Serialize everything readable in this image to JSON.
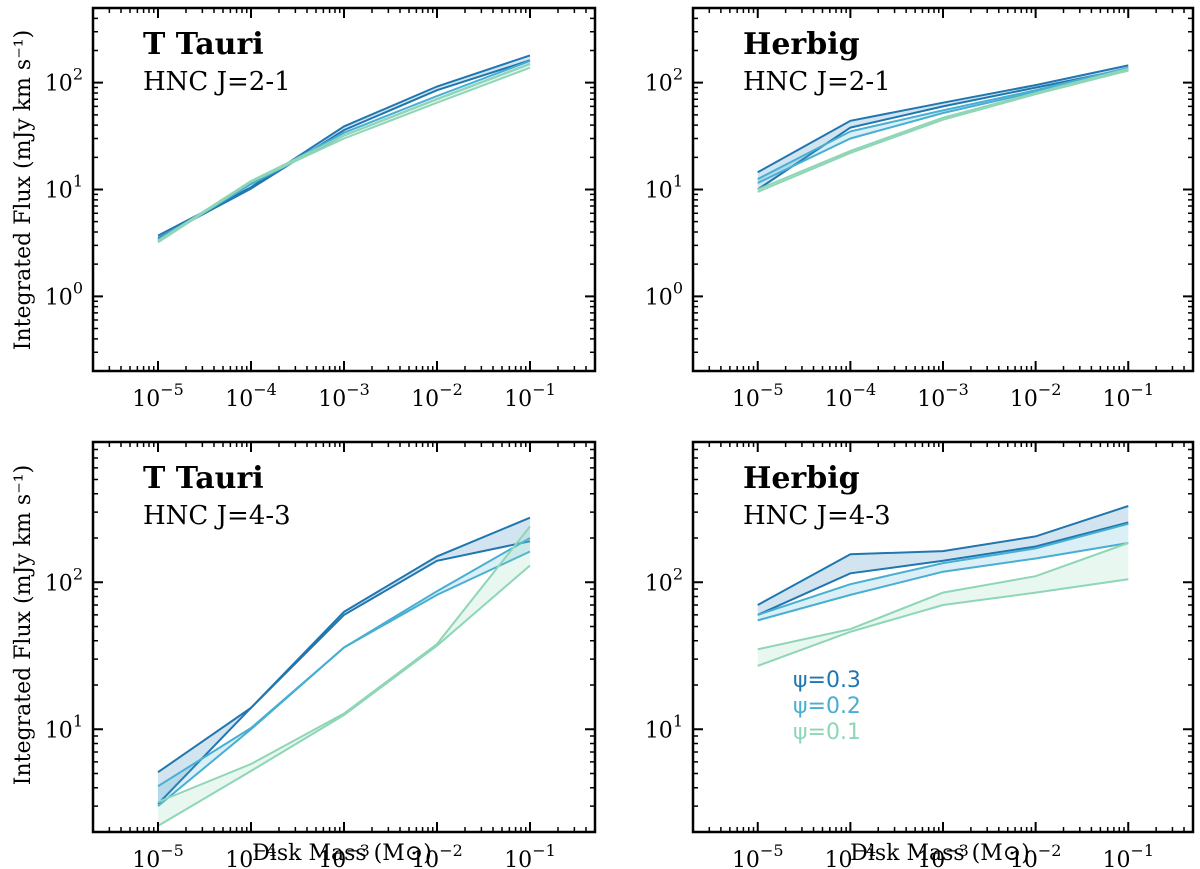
{
  "figure": {
    "ylabel": "Integrated Flux (mJy km s⁻¹)",
    "xlabel": "Disk Mass (M⊙)"
  },
  "colors": {
    "psi_0.3": "#2077b0",
    "psi_0.2": "#48aed2",
    "psi_0.1": "#8ed6b6"
  },
  "legend": [
    {
      "label": "ψ=0.3",
      "color": "#2077b0"
    },
    {
      "label": "ψ=0.2",
      "color": "#48aed2"
    },
    {
      "label": "ψ=0.1",
      "color": "#8ed6b6"
    }
  ],
  "chart_data": [
    {
      "type": "line",
      "title": "T Tauri",
      "subtitle": "HNC J=2-1",
      "xscale": "log",
      "yscale": "log",
      "xlim": [
        2e-06,
        0.5
      ],
      "ylim": [
        0.2,
        500
      ],
      "xticks": [
        1e-05,
        0.0001,
        0.001,
        0.01,
        0.1
      ],
      "xtick_labels": [
        {
          "base": "10",
          "exp": "−5"
        },
        {
          "base": "10",
          "exp": "−4"
        },
        {
          "base": "10",
          "exp": "−3"
        },
        {
          "base": "10",
          "exp": "−2"
        },
        {
          "base": "10",
          "exp": "−1"
        }
      ],
      "yticks": [
        1,
        10,
        100
      ],
      "ytick_labels": [
        {
          "base": "10",
          "exp": "0"
        },
        {
          "base": "10",
          "exp": "1"
        },
        {
          "base": "10",
          "exp": "2"
        }
      ],
      "show_xlabel": false,
      "show_ylabel": true,
      "show_legend": false,
      "x": [
        1e-05,
        0.0001,
        0.001,
        0.01,
        0.1
      ],
      "series": [
        {
          "name": "ψ=0.3",
          "color": "#2077b0",
          "upper": [
            3.7,
            10.5,
            39,
            92,
            180
          ],
          "lower": [
            3.5,
            10.2,
            36,
            85,
            162
          ]
        },
        {
          "name": "ψ=0.2",
          "color": "#48aed2",
          "upper": [
            3.4,
            11.5,
            34,
            75,
            160
          ],
          "lower": [
            3.3,
            11.2,
            32,
            70,
            150
          ]
        },
        {
          "name": "ψ=0.1",
          "color": "#8ed6b6",
          "upper": [
            3.3,
            12,
            32,
            70,
            150
          ],
          "lower": [
            3.2,
            11.8,
            30,
            65,
            138
          ]
        }
      ]
    },
    {
      "type": "line",
      "title": "Herbig",
      "subtitle": "HNC J=2-1",
      "xscale": "log",
      "yscale": "log",
      "xlim": [
        2e-06,
        0.5
      ],
      "ylim": [
        0.2,
        500
      ],
      "xticks": [
        1e-05,
        0.0001,
        0.001,
        0.01,
        0.1
      ],
      "xtick_labels": [
        {
          "base": "10",
          "exp": "−5"
        },
        {
          "base": "10",
          "exp": "−4"
        },
        {
          "base": "10",
          "exp": "−3"
        },
        {
          "base": "10",
          "exp": "−2"
        },
        {
          "base": "10",
          "exp": "−1"
        }
      ],
      "yticks": [
        1,
        10,
        100
      ],
      "ytick_labels": [
        {
          "base": "10",
          "exp": "0"
        },
        {
          "base": "10",
          "exp": "1"
        },
        {
          "base": "10",
          "exp": "2"
        }
      ],
      "show_xlabel": false,
      "show_ylabel": false,
      "show_legend": false,
      "x": [
        1e-05,
        0.0001,
        0.001,
        0.01,
        0.1
      ],
      "series": [
        {
          "name": "ψ=0.3",
          "color": "#2077b0",
          "upper": [
            14.5,
            44,
            65,
            95,
            145
          ],
          "lower": [
            10,
            38,
            60,
            90,
            135
          ]
        },
        {
          "name": "ψ=0.2",
          "color": "#48aed2",
          "upper": [
            12.5,
            35,
            55,
            85,
            138
          ],
          "lower": [
            11.5,
            30,
            52,
            82,
            130
          ]
        },
        {
          "name": "ψ=0.1",
          "color": "#8ed6b6",
          "upper": [
            10,
            23,
            47,
            80,
            135
          ],
          "lower": [
            9.5,
            22,
            45,
            78,
            130
          ]
        }
      ]
    },
    {
      "type": "line",
      "title": "T Tauri",
      "subtitle": "HNC J=4-3",
      "xscale": "log",
      "yscale": "log",
      "xlim": [
        2e-06,
        0.5
      ],
      "ylim": [
        2,
        900
      ],
      "xticks": [
        1e-05,
        0.0001,
        0.001,
        0.01,
        0.1
      ],
      "xtick_labels": [
        {
          "base": "10",
          "exp": "−5"
        },
        {
          "base": "10",
          "exp": "−4"
        },
        {
          "base": "10",
          "exp": "−3"
        },
        {
          "base": "10",
          "exp": "−2"
        },
        {
          "base": "10",
          "exp": "−1"
        }
      ],
      "yticks": [
        10,
        100
      ],
      "ytick_labels": [
        {
          "base": "10",
          "exp": "1"
        },
        {
          "base": "10",
          "exp": "2"
        }
      ],
      "show_xlabel": true,
      "show_ylabel": true,
      "show_legend": false,
      "x": [
        1e-05,
        0.0001,
        0.001,
        0.01,
        0.1
      ],
      "series": [
        {
          "name": "ψ=0.3",
          "color": "#2077b0",
          "upper": [
            5.1,
            14,
            63,
            150,
            275
          ],
          "lower": [
            3.1,
            14,
            60,
            140,
            190
          ]
        },
        {
          "name": "ψ=0.2",
          "color": "#48aed2",
          "upper": [
            4.1,
            10.2,
            36,
            87,
            200
          ],
          "lower": [
            3.0,
            10.0,
            36,
            82,
            162
          ]
        },
        {
          "name": "ψ=0.1",
          "color": "#8ed6b6",
          "upper": [
            3.2,
            5.8,
            12.8,
            38,
            240
          ],
          "lower": [
            2.2,
            5.2,
            12.5,
            37,
            130
          ]
        }
      ]
    },
    {
      "type": "line",
      "title": "Herbig",
      "subtitle": "HNC J=4-3",
      "xscale": "log",
      "yscale": "log",
      "xlim": [
        2e-06,
        0.5
      ],
      "ylim": [
        2,
        900
      ],
      "xticks": [
        1e-05,
        0.0001,
        0.001,
        0.01,
        0.1
      ],
      "xtick_labels": [
        {
          "base": "10",
          "exp": "−5"
        },
        {
          "base": "10",
          "exp": "−4"
        },
        {
          "base": "10",
          "exp": "−3"
        },
        {
          "base": "10",
          "exp": "−2"
        },
        {
          "base": "10",
          "exp": "−1"
        }
      ],
      "yticks": [
        10,
        100
      ],
      "ytick_labels": [
        {
          "base": "10",
          "exp": "1"
        },
        {
          "base": "10",
          "exp": "2"
        }
      ],
      "show_xlabel": true,
      "show_ylabel": false,
      "show_legend": true,
      "x": [
        1e-05,
        0.0001,
        0.001,
        0.01,
        0.1
      ],
      "series": [
        {
          "name": "ψ=0.3",
          "color": "#2077b0",
          "upper": [
            70,
            155,
            163,
            205,
            330
          ],
          "lower": [
            60,
            115,
            140,
            175,
            255
          ]
        },
        {
          "name": "ψ=0.2",
          "color": "#48aed2",
          "upper": [
            60,
            97,
            135,
            170,
            250
          ],
          "lower": [
            55,
            82,
            118,
            145,
            185
          ]
        },
        {
          "name": "ψ=0.1",
          "color": "#8ed6b6",
          "upper": [
            35,
            48,
            85,
            110,
            185
          ],
          "lower": [
            27,
            46,
            70,
            85,
            105
          ]
        }
      ]
    }
  ]
}
